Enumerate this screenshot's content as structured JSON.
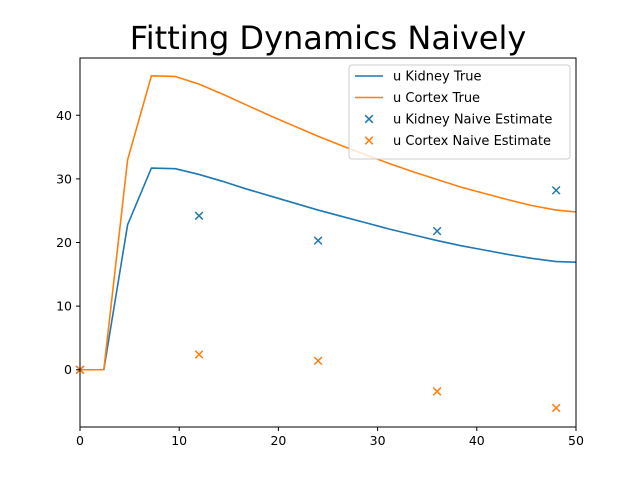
{
  "chart_data": {
    "type": "line",
    "title": "Fitting Dynamics Naively",
    "xlabel": "",
    "ylabel": "",
    "xlim": [
      0,
      50
    ],
    "ylim": [
      -9,
      49
    ],
    "xticks": [
      0,
      10,
      20,
      30,
      40,
      50
    ],
    "yticks": [
      0,
      10,
      20,
      30,
      40
    ],
    "grid": false,
    "legend_position": "upper-right",
    "series": [
      {
        "name": "u Kidney True",
        "kind": "line",
        "color": "#1f77b4",
        "x": [
          0,
          2.4,
          4.8,
          7.2,
          9.6,
          12,
          14.4,
          16.8,
          19.2,
          21.6,
          24,
          26.4,
          28.8,
          31.2,
          33.6,
          36,
          38.4,
          40.8,
          43.2,
          45.6,
          48,
          50
        ],
        "y": [
          0,
          0,
          22.8,
          31.7,
          31.6,
          30.7,
          29.6,
          28.4,
          27.3,
          26.2,
          25.1,
          24.1,
          23.1,
          22.1,
          21.2,
          20.3,
          19.5,
          18.8,
          18.1,
          17.5,
          17.0,
          16.9
        ]
      },
      {
        "name": "u Cortex True",
        "kind": "line",
        "color": "#ff7f0e",
        "x": [
          0,
          2.4,
          4.8,
          7.2,
          9.6,
          12,
          14.4,
          16.8,
          19.2,
          21.6,
          24,
          26.4,
          28.8,
          31.2,
          33.6,
          36,
          38.4,
          40.8,
          43.2,
          45.6,
          48,
          50
        ],
        "y": [
          0,
          0,
          33.0,
          46.2,
          46.1,
          44.9,
          43.3,
          41.6,
          39.9,
          38.3,
          36.7,
          35.2,
          33.8,
          32.4,
          31.1,
          29.9,
          28.7,
          27.7,
          26.7,
          25.8,
          25.1,
          24.8
        ]
      },
      {
        "name": "u Kidney Naive Estimate",
        "kind": "scatter",
        "marker": "x",
        "color": "#1f77b4",
        "x": [
          0,
          12,
          24,
          36,
          48
        ],
        "y": [
          0,
          24.2,
          20.3,
          21.8,
          28.2
        ]
      },
      {
        "name": "u Cortex Naive Estimate",
        "kind": "scatter",
        "marker": "x",
        "color": "#ff7f0e",
        "x": [
          0,
          12,
          24,
          36,
          48
        ],
        "y": [
          0,
          2.4,
          1.4,
          -3.4,
          -6.0
        ]
      }
    ]
  }
}
